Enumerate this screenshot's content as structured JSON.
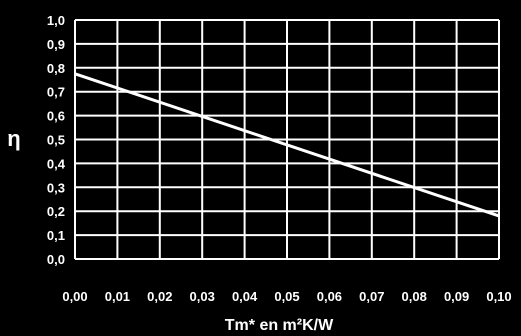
{
  "chart_data": {
    "type": "line",
    "xlabel": "Tm* en m²K/W",
    "ylabel": "η",
    "xlim": [
      0,
      0.1
    ],
    "ylim": [
      0,
      1.0
    ],
    "x_ticks": [
      "0,00",
      "0,01",
      "0,02",
      "0,03",
      "0,04",
      "0,05",
      "0,06",
      "0,07",
      "0,08",
      "0,09",
      "0,10"
    ],
    "y_ticks": [
      "0,0",
      "0,1",
      "0,2",
      "0,3",
      "0,4",
      "0,5",
      "0,6",
      "0,7",
      "0,8",
      "0,9",
      "1,0"
    ],
    "grid": true,
    "colors": {
      "background": "#000000",
      "grid": "#ffffff",
      "line": "#ffffff",
      "text": "#ffffff"
    },
    "series": [
      {
        "x": [
          0.0,
          0.1
        ],
        "y": [
          0.775,
          0.18
        ]
      }
    ]
  }
}
